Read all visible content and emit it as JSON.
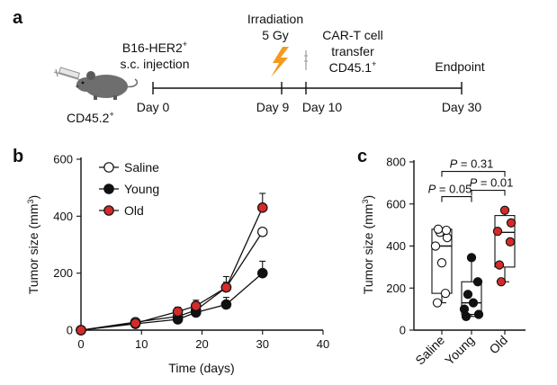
{
  "panel_a": {
    "letter": "a",
    "mouse_label_base": "CD45.2",
    "mouse_label_sup": "+",
    "inject_line1_base": "B16-HER2",
    "inject_line1_sup": "+",
    "inject_line2": "s.c. injection",
    "irradiation_line1": "Irradiation",
    "irradiation_line2": "5 Gy",
    "cart_line1": "CAR-T cell",
    "cart_line2": "transfer",
    "cart_line3_base": "CD45.1",
    "cart_line3_sup": "+",
    "endpoint": "Endpoint",
    "days": [
      "Day 0",
      "Day 9",
      "Day 10",
      "Day 30"
    ],
    "colors": {
      "lightning": "#f39a1f",
      "mouse": "#6e6e6e",
      "syringe": "#9a9a9a"
    }
  },
  "chart_data": [
    {
      "type": "line",
      "panel": "b",
      "xlabel": "Time (days)",
      "ylabel_base": "Tumor size (mm",
      "ylabel_sup": "3",
      "ylabel_end": ")",
      "xlim": [
        0,
        40
      ],
      "ylim": [
        0,
        600
      ],
      "xticks": [
        0,
        10,
        20,
        30,
        40
      ],
      "yticks": [
        0,
        200,
        400,
        600
      ],
      "legend_position": "top-left",
      "series": [
        {
          "name": "Saline",
          "marker": "open-circle",
          "color": "#ffffff",
          "x": [
            0,
            9,
            16,
            19,
            24,
            30
          ],
          "y": [
            0,
            28,
            48,
            70,
            150,
            345
          ],
          "err": [
            0,
            8,
            10,
            14,
            38,
            0
          ]
        },
        {
          "name": "Young",
          "marker": "filled-circle",
          "color": "#111111",
          "x": [
            0,
            9,
            16,
            19,
            24,
            30
          ],
          "y": [
            0,
            22,
            38,
            62,
            90,
            200
          ],
          "err": [
            0,
            6,
            8,
            10,
            25,
            42
          ]
        },
        {
          "name": "Old",
          "marker": "filled-circle",
          "color": "#d42a2a",
          "x": [
            0,
            9,
            16,
            19,
            24,
            30
          ],
          "y": [
            0,
            24,
            65,
            85,
            150,
            430
          ],
          "err": [
            0,
            6,
            15,
            20,
            18,
            50
          ]
        }
      ]
    },
    {
      "type": "box",
      "panel": "c",
      "ylabel_base": "Tumor size (mm",
      "ylabel_sup": "3",
      "ylabel_end": ")",
      "ylim": [
        0,
        800
      ],
      "yticks": [
        0,
        200,
        400,
        600,
        800
      ],
      "categories": [
        "Saline",
        "Young",
        "Old"
      ],
      "groups": [
        {
          "name": "Saline",
          "color": "#ffffff",
          "points": [
            130,
            175,
            320,
            400,
            440,
            465,
            475,
            480
          ],
          "box": {
            "min": 130,
            "q1": 175,
            "median": 400,
            "q3": 480,
            "max": 480
          }
        },
        {
          "name": "Young",
          "color": "#111111",
          "points": [
            65,
            75,
            100,
            130,
            170,
            230,
            345
          ],
          "box": {
            "min": 65,
            "q1": 75,
            "median": 130,
            "q3": 230,
            "max": 345
          }
        },
        {
          "name": "Old",
          "color": "#d42a2a",
          "points": [
            230,
            310,
            420,
            470,
            510,
            570
          ],
          "box": {
            "min": 230,
            "q1": 300,
            "median": 465,
            "q3": 545,
            "max": 570
          }
        }
      ],
      "comparisons": [
        {
          "from": 0,
          "to": 2,
          "p_label": "P",
          "p_value": " = 0.31"
        },
        {
          "from": 0,
          "to": 1,
          "p_label": "P",
          "p_value": " = 0.05"
        },
        {
          "from": 1,
          "to": 2,
          "p_label": "P",
          "p_value": " = 0.01"
        }
      ]
    }
  ]
}
